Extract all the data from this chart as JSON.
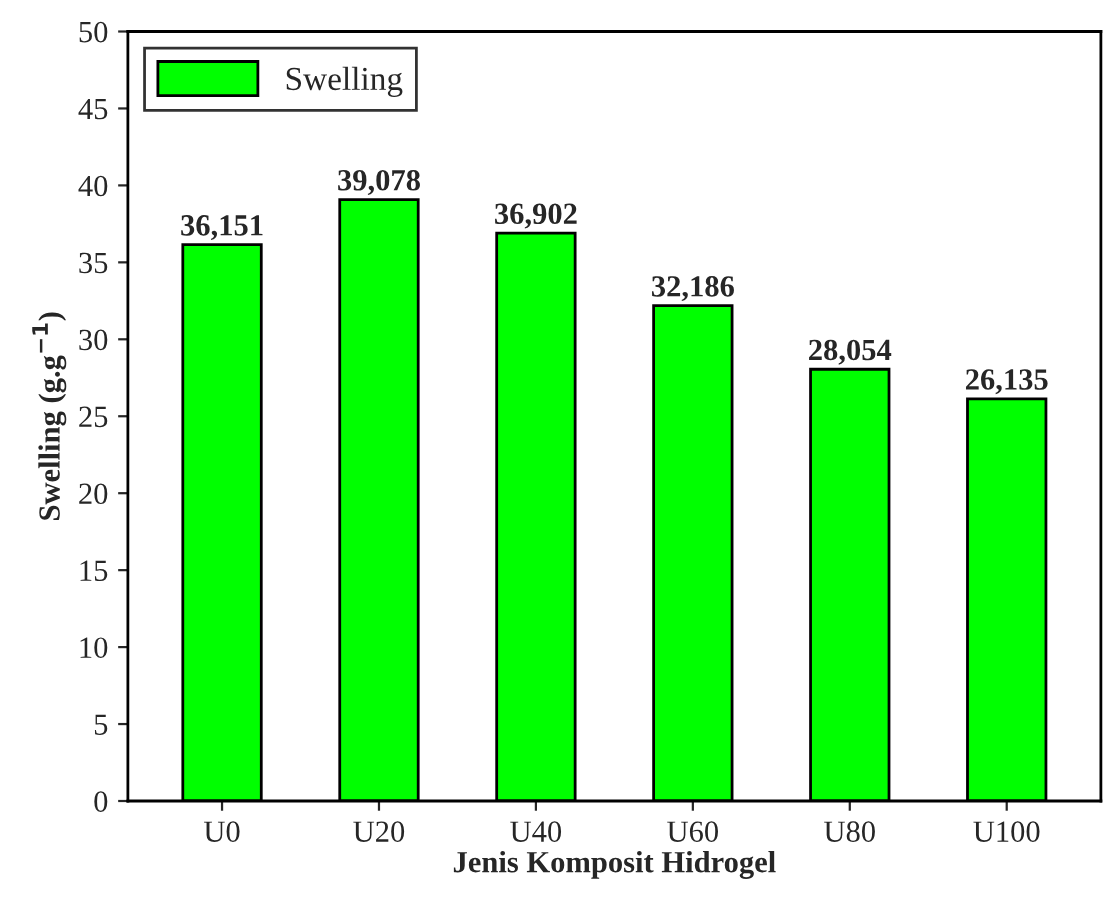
{
  "chart_data": {
    "type": "bar",
    "xlabel": "Jenis Komposit Hidrogel",
    "ylabel": "Swelling (g.g$^{−1}$)",
    "categories": [
      "U0",
      "U20",
      "U40",
      "U60",
      "U80",
      "U100"
    ],
    "series": [
      {
        "name": "Swelling",
        "color": "#00ff00",
        "values": [
          36.151,
          39.078,
          36.902,
          32.186,
          28.054,
          26.135
        ]
      }
    ],
    "value_labels": [
      "36,151",
      "39,078",
      "36,902",
      "32,186",
      "28,054",
      "26,135"
    ],
    "ylim": [
      0,
      50
    ],
    "yticks": [
      0,
      5,
      10,
      15,
      20,
      25,
      30,
      35,
      40,
      45,
      50
    ],
    "legend": "top left",
    "grid": false
  }
}
